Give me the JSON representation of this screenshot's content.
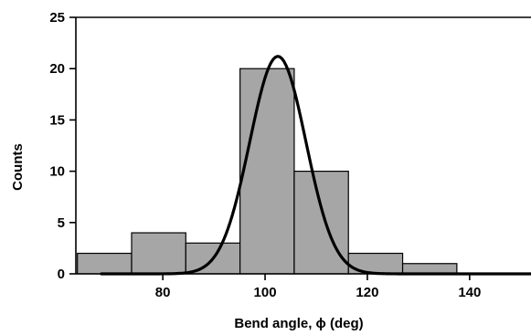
{
  "chart_data": {
    "type": "bar",
    "title": "",
    "xlabel": "Bend angle, ϕ (deg)",
    "ylabel": "Counts",
    "xlim": [
      63,
      152
    ],
    "ylim": [
      0,
      25
    ],
    "x_ticks": [
      80,
      100,
      120,
      140
    ],
    "y_ticks": [
      0,
      5,
      10,
      15,
      20,
      25
    ],
    "grid": false,
    "legend": "none",
    "bar_color": "#a6a6a6",
    "bins": [
      {
        "start": 63.3,
        "end": 73.9,
        "count": 2
      },
      {
        "start": 73.9,
        "end": 84.5,
        "count": 4
      },
      {
        "start": 84.5,
        "end": 95.1,
        "count": 3
      },
      {
        "start": 95.1,
        "end": 105.7,
        "count": 20
      },
      {
        "start": 105.7,
        "end": 116.3,
        "count": 10
      },
      {
        "start": 116.3,
        "end": 126.9,
        "count": 2
      },
      {
        "start": 126.9,
        "end": 137.5,
        "count": 1
      },
      {
        "start": 137.5,
        "end": 148.1,
        "count": 0
      }
    ],
    "fit_curve": {
      "type": "gaussian",
      "mean": 102.5,
      "amplitude": 21.2,
      "sigma": 5.5,
      "x_range": [
        68,
        152
      ]
    }
  }
}
